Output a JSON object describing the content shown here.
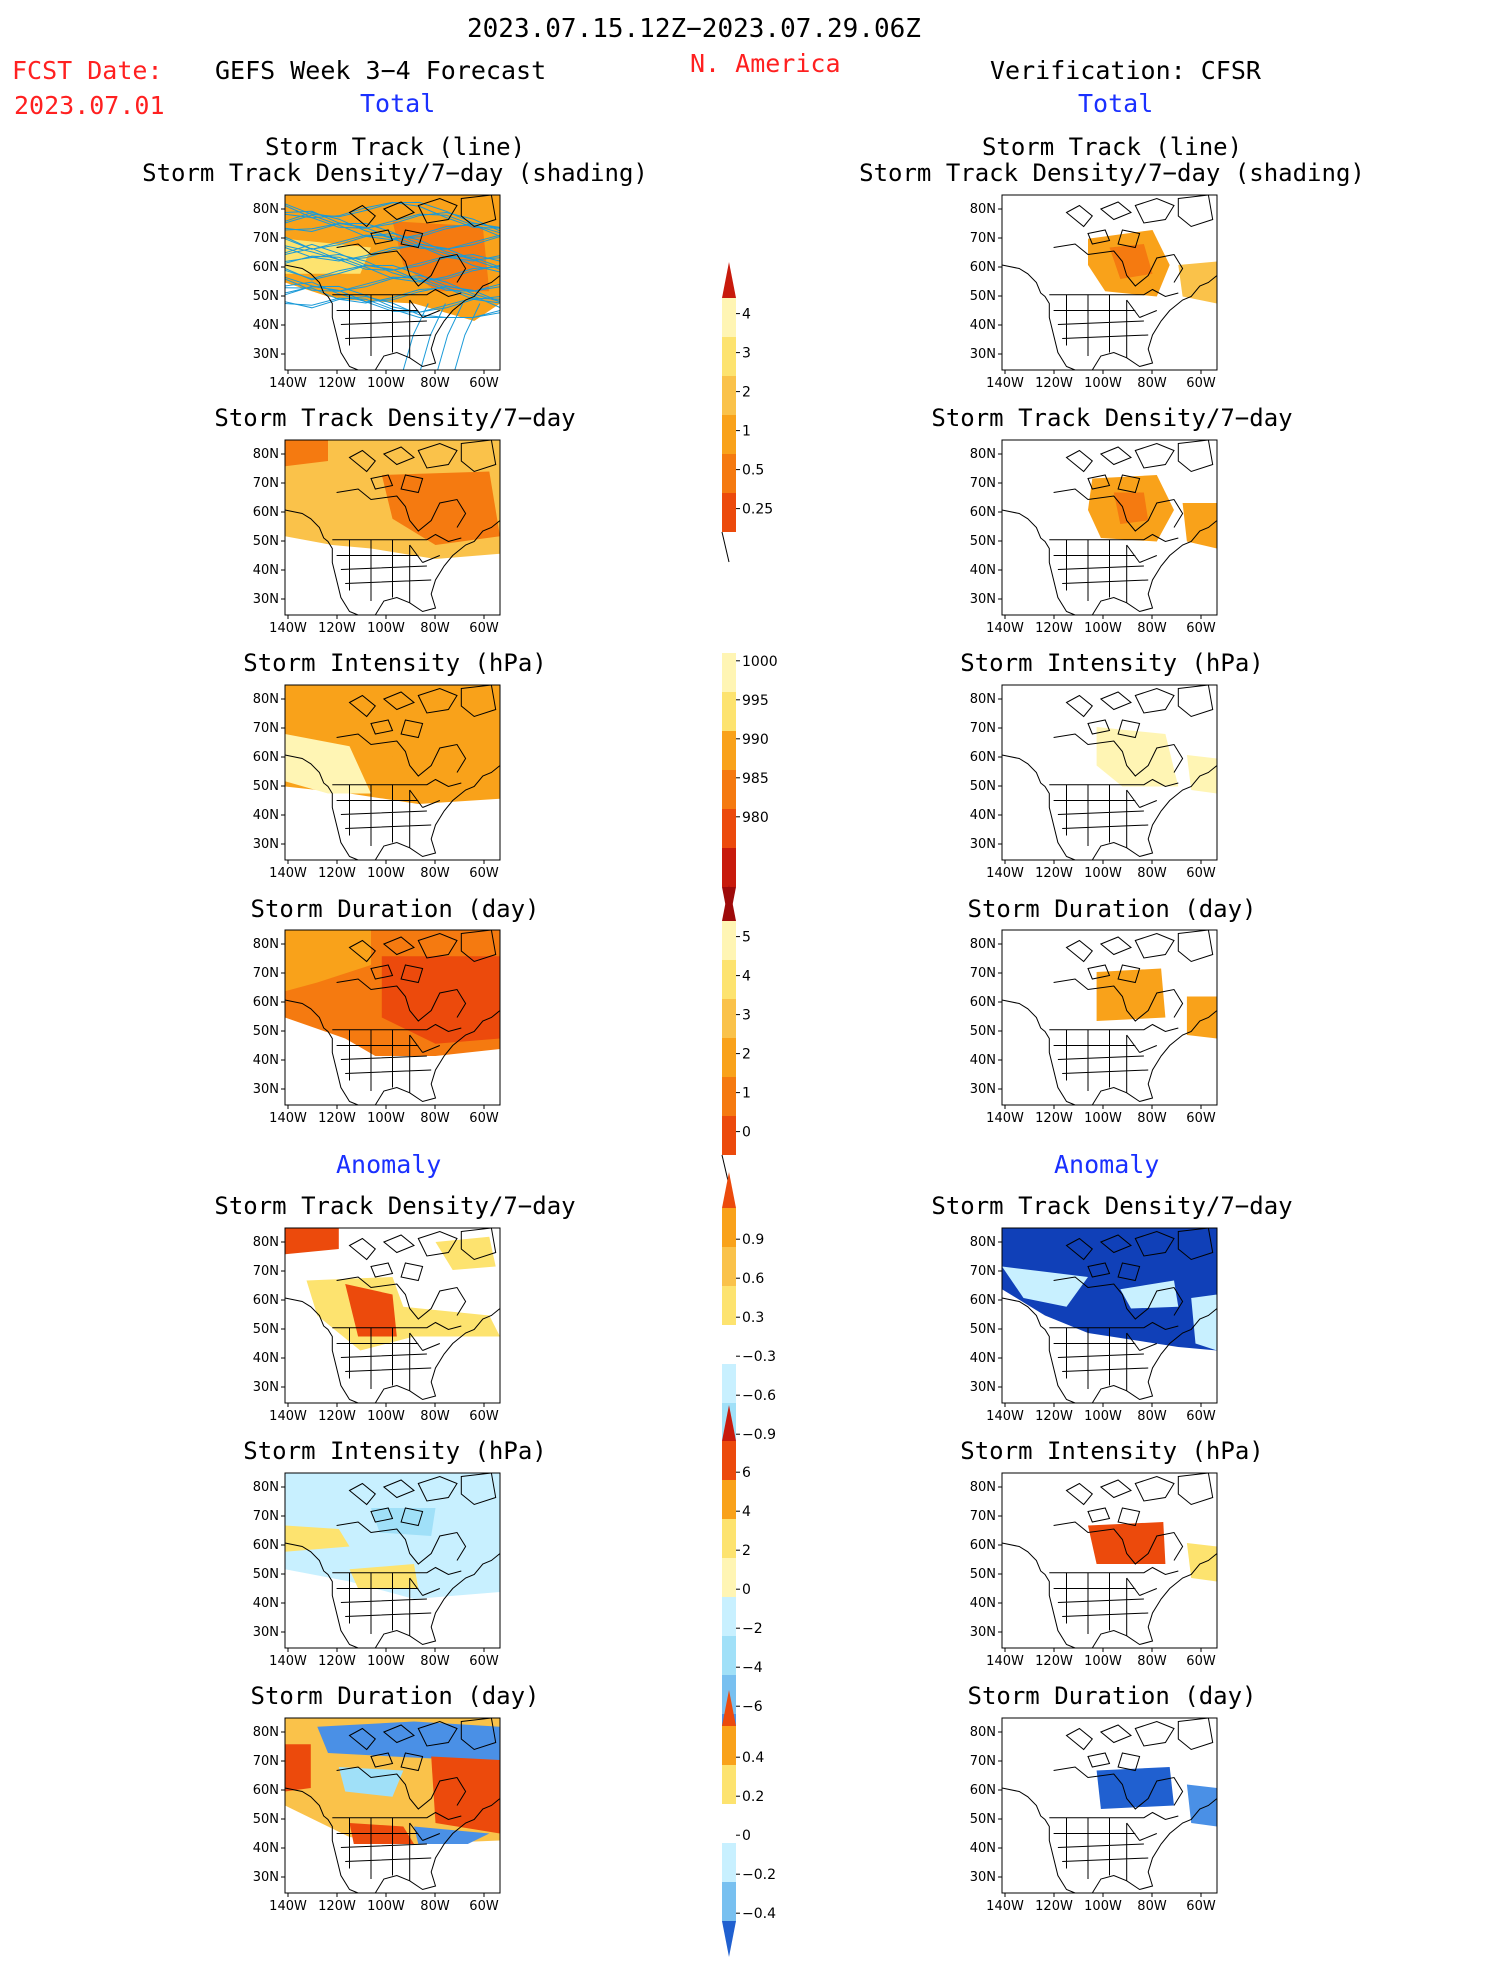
{
  "header": {
    "date_range": "2023.07.15.12Z−2023.07.29.06Z",
    "fcst_date_label": "FCST Date:",
    "fcst_date_value": "2023.07.01",
    "left_title": "GEFS Week 3−4 Forecast",
    "region": "N. America",
    "right_title": "Verification: CFSR",
    "section_total": "Total",
    "section_anomaly": "Anomaly"
  },
  "axes": {
    "lat_labels": [
      "80N",
      "70N",
      "60N",
      "50N",
      "40N",
      "30N"
    ],
    "lon_labels": [
      "140W",
      "120W",
      "100W",
      "80W",
      "60W"
    ]
  },
  "panel_titles": {
    "track_line": "Storm Track (line)",
    "track_density_shading": "Storm Track Density/7−day (shading)",
    "track_density": "Storm Track Density/7−day",
    "intensity": "Storm Intensity (hPa)",
    "duration": "Storm Duration (day)"
  },
  "colors": {
    "warm": [
      "#fff5b4",
      "#fde36f",
      "#fac24a",
      "#f9a21a",
      "#f57a10",
      "#ec4a0c",
      "#c81a0c",
      "#9e0a0a"
    ],
    "cool": [
      "#c8f0ff",
      "#a0e0f8",
      "#78c0f0",
      "#4a90e6",
      "#2060d0",
      "#1040b8"
    ],
    "track_line": "#1a9ad8"
  },
  "colorbars": [
    {
      "id": "density",
      "labels": [
        "0.25",
        "0.5",
        "1",
        "2",
        "3",
        "4"
      ]
    },
    {
      "id": "intensity",
      "labels": [
        "1000",
        "995",
        "990",
        "985",
        "980"
      ]
    },
    {
      "id": "duration",
      "labels": [
        "0",
        "1",
        "2",
        "3",
        "4",
        "5"
      ]
    },
    {
      "id": "density_anom",
      "labels": [
        "0.9",
        "0.6",
        "0.3",
        "−0.3",
        "−0.6",
        "−0.9"
      ]
    },
    {
      "id": "intensity_anom",
      "labels": [
        "6",
        "4",
        "2",
        "0",
        "−2",
        "−4",
        "−6"
      ]
    },
    {
      "id": "duration_anom",
      "labels": [
        "0.4",
        "0.2",
        "0",
        "−0.2",
        "−0.4"
      ]
    }
  ]
}
